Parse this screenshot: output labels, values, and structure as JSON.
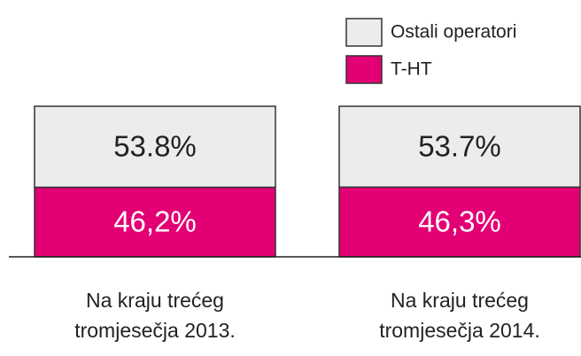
{
  "chart_data": {
    "type": "stacked_bar",
    "categories": [
      "Na kraju trećeg tromjesečja 2013.",
      "Na kraju trećeg tromjesečja 2014."
    ],
    "series": [
      {
        "name": "T-HT",
        "color": "#e20074",
        "values": [
          46.2,
          46.3
        ],
        "value_labels": [
          "46,2%",
          "46,3%"
        ]
      },
      {
        "name": "Ostali operatori",
        "color": "#ececec",
        "values": [
          53.8,
          53.7
        ],
        "value_labels": [
          "53.8%",
          "53.7%"
        ]
      }
    ],
    "ylim": [
      0,
      100
    ],
    "legend": "top-right"
  }
}
